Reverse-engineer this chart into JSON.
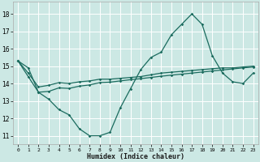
{
  "title": "",
  "xlabel": "Humidex (Indice chaleur)",
  "ylabel": "",
  "bg_color": "#cce8e4",
  "grid_color": "#ffffff",
  "line_color": "#1a6b5e",
  "xlim": [
    -0.5,
    23.5
  ],
  "ylim": [
    10.5,
    18.7
  ],
  "xticks": [
    0,
    1,
    2,
    3,
    4,
    5,
    6,
    7,
    8,
    9,
    10,
    11,
    12,
    13,
    14,
    15,
    16,
    17,
    18,
    19,
    20,
    21,
    22,
    23
  ],
  "yticks": [
    11,
    12,
    13,
    14,
    15,
    16,
    17,
    18
  ],
  "series": [
    [
      15.3,
      14.9,
      13.5,
      13.1,
      12.5,
      12.2,
      11.4,
      11.0,
      11.0,
      11.2,
      12.6,
      13.7,
      14.8,
      15.5,
      15.8,
      16.8,
      17.4,
      18.0,
      17.4,
      15.6,
      14.6,
      14.1,
      14.0,
      14.6
    ],
    [
      15.3,
      14.4,
      13.5,
      13.55,
      13.75,
      13.72,
      13.85,
      13.92,
      14.05,
      14.08,
      14.15,
      14.22,
      14.28,
      14.35,
      14.42,
      14.48,
      14.54,
      14.6,
      14.66,
      14.72,
      14.78,
      14.84,
      14.9,
      14.95
    ],
    [
      15.3,
      14.6,
      13.8,
      13.9,
      14.05,
      14.0,
      14.1,
      14.15,
      14.25,
      14.25,
      14.3,
      14.35,
      14.4,
      14.5,
      14.6,
      14.65,
      14.7,
      14.75,
      14.8,
      14.85,
      14.9,
      14.9,
      14.95,
      15.0
    ]
  ]
}
